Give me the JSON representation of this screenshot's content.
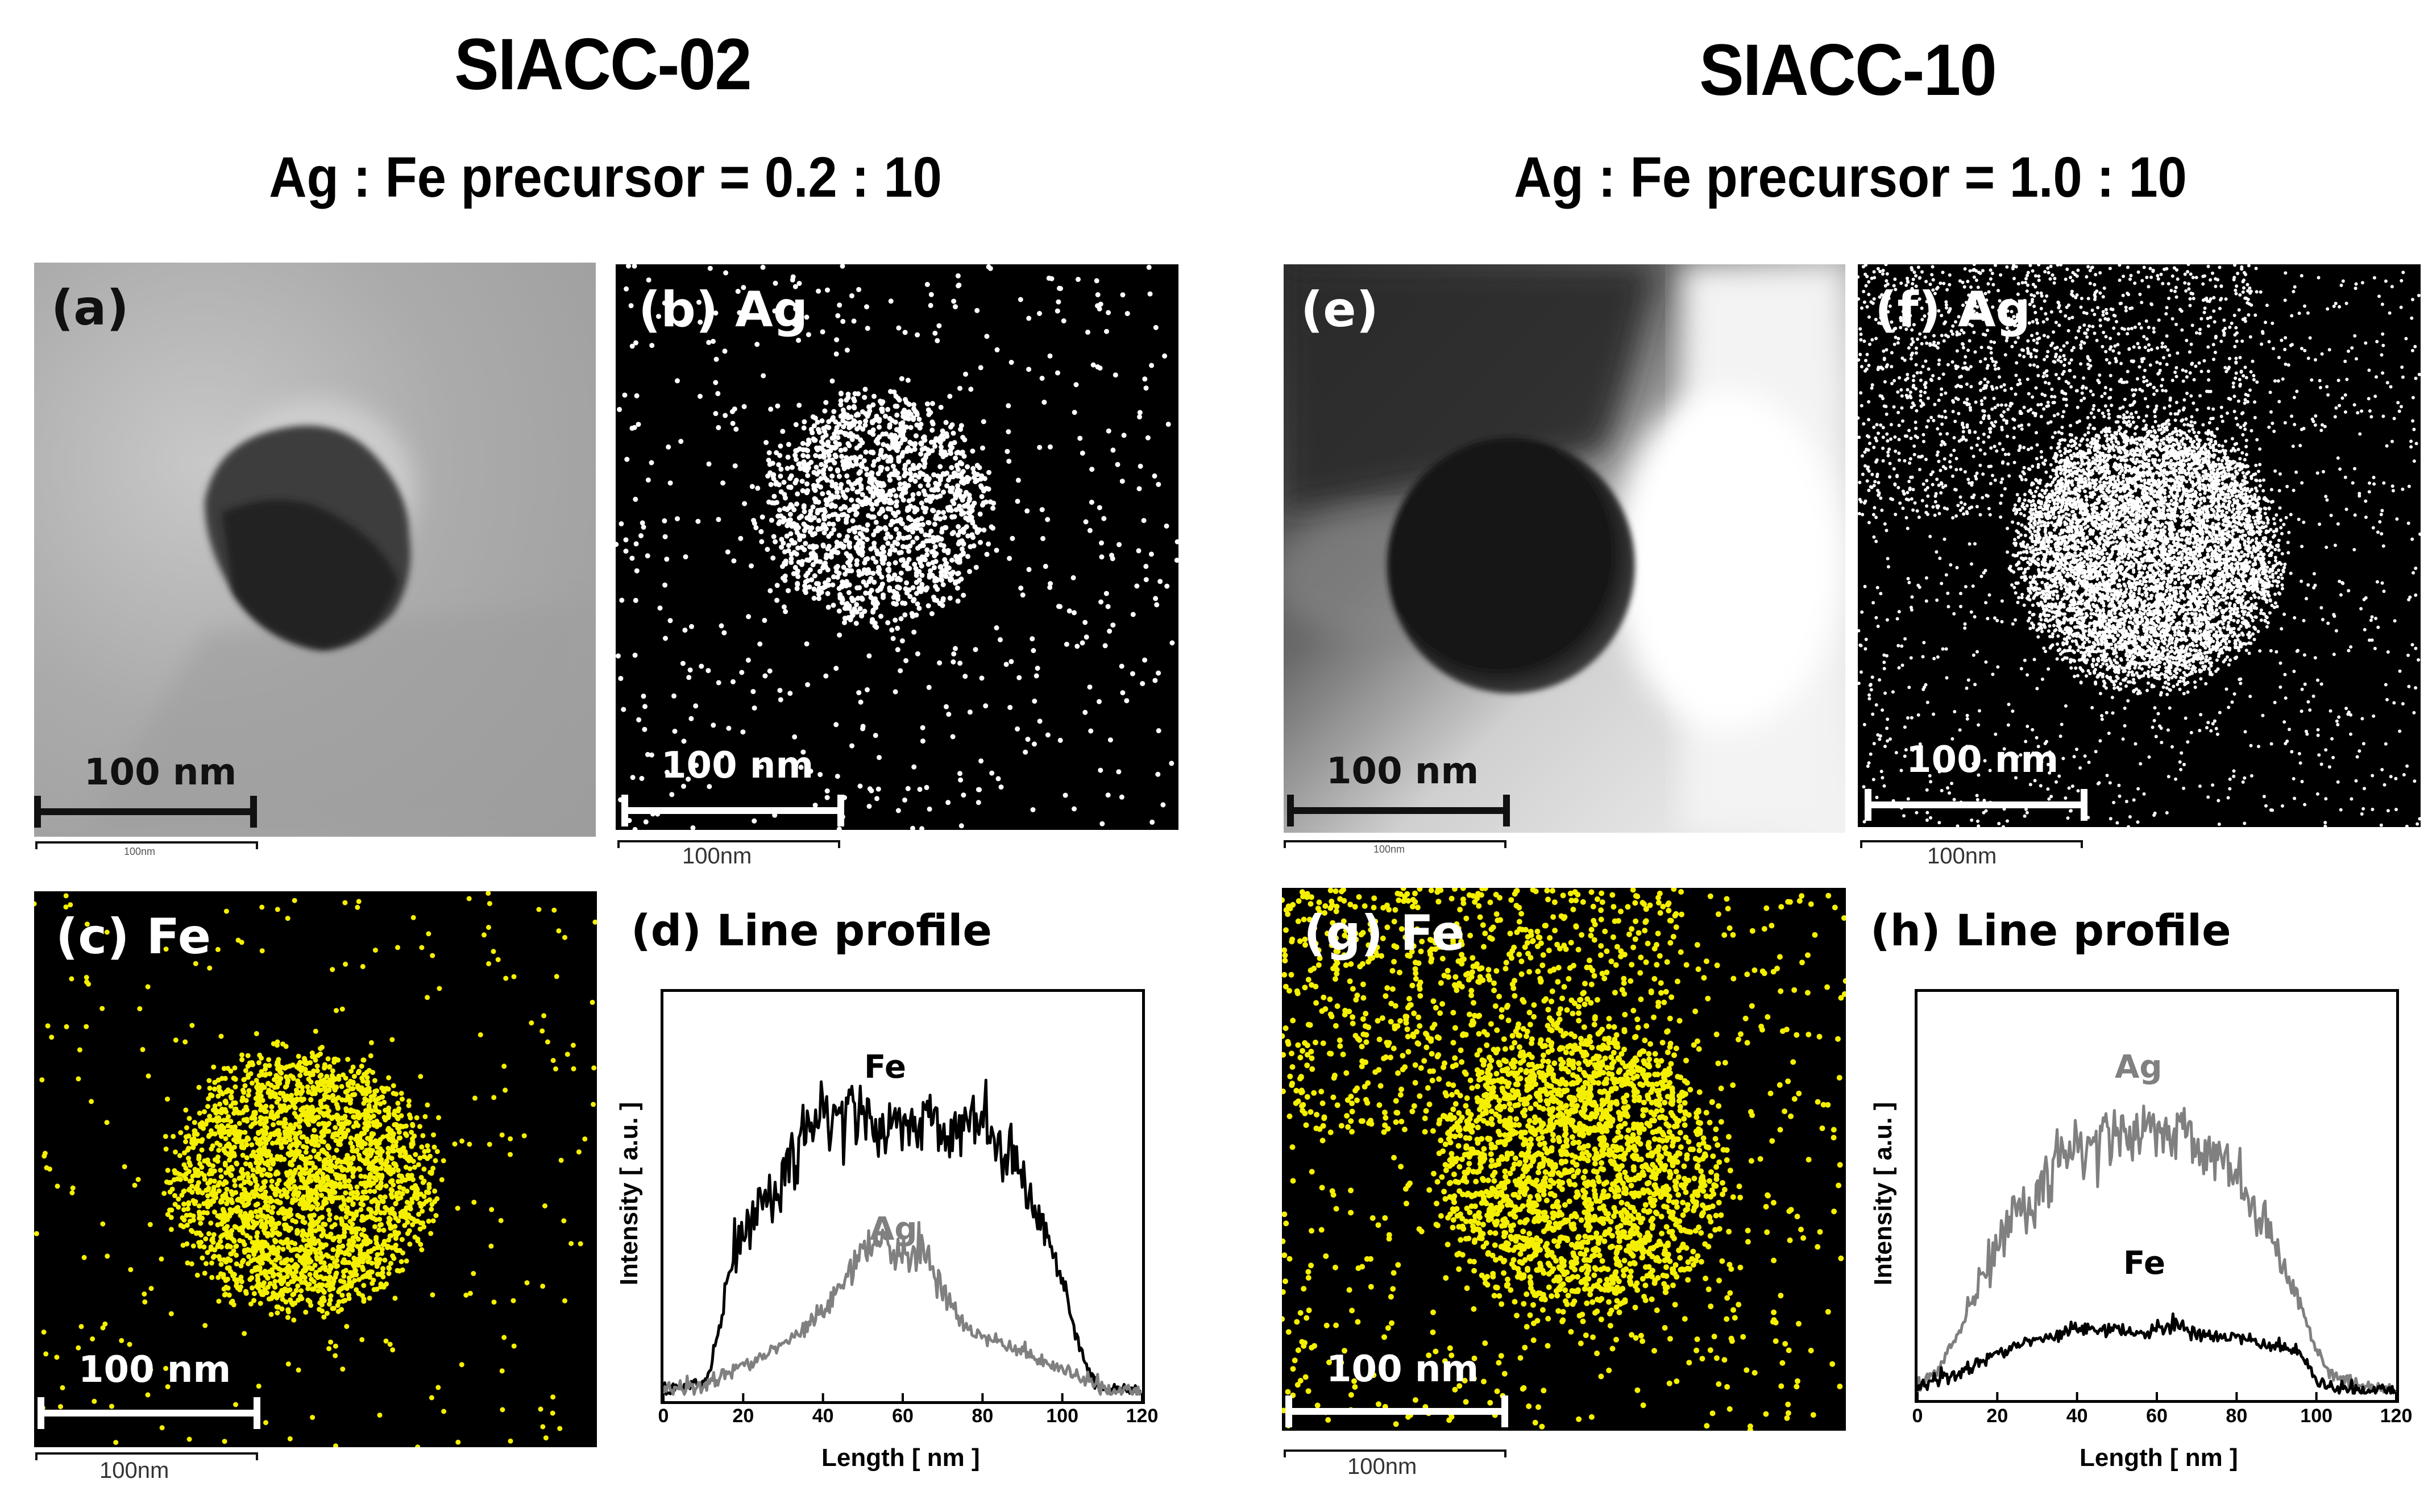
{
  "figure": {
    "left_group": {
      "title": "SIACC-02",
      "ratio": "Ag : Fe precursor = 0.2 : 10",
      "panels": {
        "a": {
          "label": "(a)",
          "type": "TEM bright-field",
          "scale_label": "100 nm",
          "sub_scale_label": "100nm"
        },
        "b": {
          "label": "(b) Ag",
          "type": "EDS map",
          "color": "#ffffff",
          "scale_label": "100 nm",
          "sub_scale_label": "100nm"
        },
        "c": {
          "label": "(c) Fe",
          "type": "EDS map",
          "color": "#f5f000",
          "scale_label": "100 nm",
          "sub_scale_label": "100nm"
        },
        "d": {
          "label": "(d) Line profile"
        }
      }
    },
    "right_group": {
      "title": "SIACC-10",
      "ratio": "Ag : Fe precursor = 1.0 : 10",
      "panels": {
        "e": {
          "label": "(e)",
          "type": "TEM bright-field",
          "scale_label": "100 nm",
          "sub_scale_label": "100nm"
        },
        "f": {
          "label": "(f) Ag",
          "type": "EDS map",
          "color": "#ffffff",
          "scale_label": "100 nm",
          "sub_scale_label": "100nm"
        },
        "g": {
          "label": "(g) Fe",
          "type": "EDS map",
          "color": "#f5f000",
          "scale_label": "100 nm",
          "sub_scale_label": "100nm"
        },
        "h": {
          "label": "(h) Line profile"
        }
      }
    }
  },
  "chart_data": [
    {
      "id": "d",
      "type": "line",
      "title": "(d) Line profile",
      "xlabel": "Length [ nm ]",
      "ylabel": "Intensity [ a.u. ]",
      "xlim": [
        0,
        120
      ],
      "ylim": [
        0,
        1
      ],
      "x_ticks": [
        "0",
        "20",
        "40",
        "60",
        "80",
        "100",
        "120"
      ],
      "grid": false,
      "legend_position": "inline labels",
      "series": [
        {
          "name": "Fe",
          "color": "#000000",
          "x": [
            0,
            5,
            10,
            12,
            15,
            18,
            20,
            25,
            30,
            35,
            40,
            45,
            50,
            55,
            60,
            65,
            70,
            75,
            80,
            85,
            90,
            95,
            100,
            103,
            106,
            108,
            110,
            115,
            120
          ],
          "y": [
            0.01,
            0.02,
            0.03,
            0.08,
            0.25,
            0.43,
            0.45,
            0.52,
            0.62,
            0.7,
            0.78,
            0.8,
            0.78,
            0.74,
            0.76,
            0.75,
            0.74,
            0.74,
            0.76,
            0.7,
            0.6,
            0.48,
            0.32,
            0.18,
            0.08,
            0.03,
            0.01,
            0.01,
            0.01
          ]
        },
        {
          "name": "Ag",
          "color": "#808080",
          "x": [
            0,
            10,
            15,
            20,
            25,
            30,
            35,
            40,
            45,
            50,
            55,
            60,
            65,
            70,
            75,
            80,
            85,
            90,
            95,
            100,
            105,
            110,
            115,
            120
          ],
          "y": [
            0.01,
            0.02,
            0.05,
            0.08,
            0.1,
            0.14,
            0.18,
            0.24,
            0.3,
            0.4,
            0.45,
            0.38,
            0.4,
            0.3,
            0.2,
            0.16,
            0.14,
            0.12,
            0.09,
            0.07,
            0.04,
            0.02,
            0.01,
            0.01
          ]
        }
      ],
      "annotations": [
        {
          "text": "Fe",
          "x": 48,
          "y": 0.9
        },
        {
          "text": "Ag",
          "x": 54,
          "y": 0.5
        }
      ]
    },
    {
      "id": "h",
      "type": "line",
      "title": "(h) Line profile",
      "xlabel": "Length [ nm ]",
      "ylabel": "Intensity [ a.u. ]",
      "xlim": [
        0,
        120
      ],
      "ylim": [
        0,
        1
      ],
      "x_ticks": [
        "0",
        "20",
        "40",
        "60",
        "80",
        "100",
        "120"
      ],
      "grid": false,
      "legend_position": "inline labels",
      "series": [
        {
          "name": "Ag",
          "color": "#808080",
          "x": [
            0,
            5,
            10,
            15,
            20,
            25,
            30,
            35,
            40,
            45,
            50,
            55,
            60,
            65,
            70,
            75,
            80,
            85,
            90,
            95,
            100,
            103,
            106,
            110,
            115,
            120
          ],
          "y": [
            0.02,
            0.06,
            0.16,
            0.3,
            0.42,
            0.5,
            0.56,
            0.64,
            0.68,
            0.72,
            0.72,
            0.74,
            0.74,
            0.72,
            0.7,
            0.66,
            0.6,
            0.52,
            0.4,
            0.28,
            0.12,
            0.06,
            0.04,
            0.02,
            0.01,
            0.01
          ]
        },
        {
          "name": "Fe",
          "color": "#000000",
          "x": [
            0,
            5,
            10,
            15,
            20,
            25,
            30,
            35,
            40,
            45,
            50,
            55,
            60,
            65,
            70,
            75,
            80,
            85,
            90,
            95,
            98,
            100,
            105,
            110,
            120
          ],
          "y": [
            0.01,
            0.04,
            0.05,
            0.08,
            0.11,
            0.13,
            0.15,
            0.16,
            0.19,
            0.17,
            0.18,
            0.17,
            0.18,
            0.19,
            0.17,
            0.16,
            0.16,
            0.14,
            0.13,
            0.12,
            0.08,
            0.03,
            0.01,
            0.01,
            0.01
          ]
        }
      ],
      "annotations": [
        {
          "text": "Ag",
          "x": 52,
          "y": 0.78
        },
        {
          "text": "Fe",
          "x": 55,
          "y": 0.31
        }
      ]
    }
  ]
}
